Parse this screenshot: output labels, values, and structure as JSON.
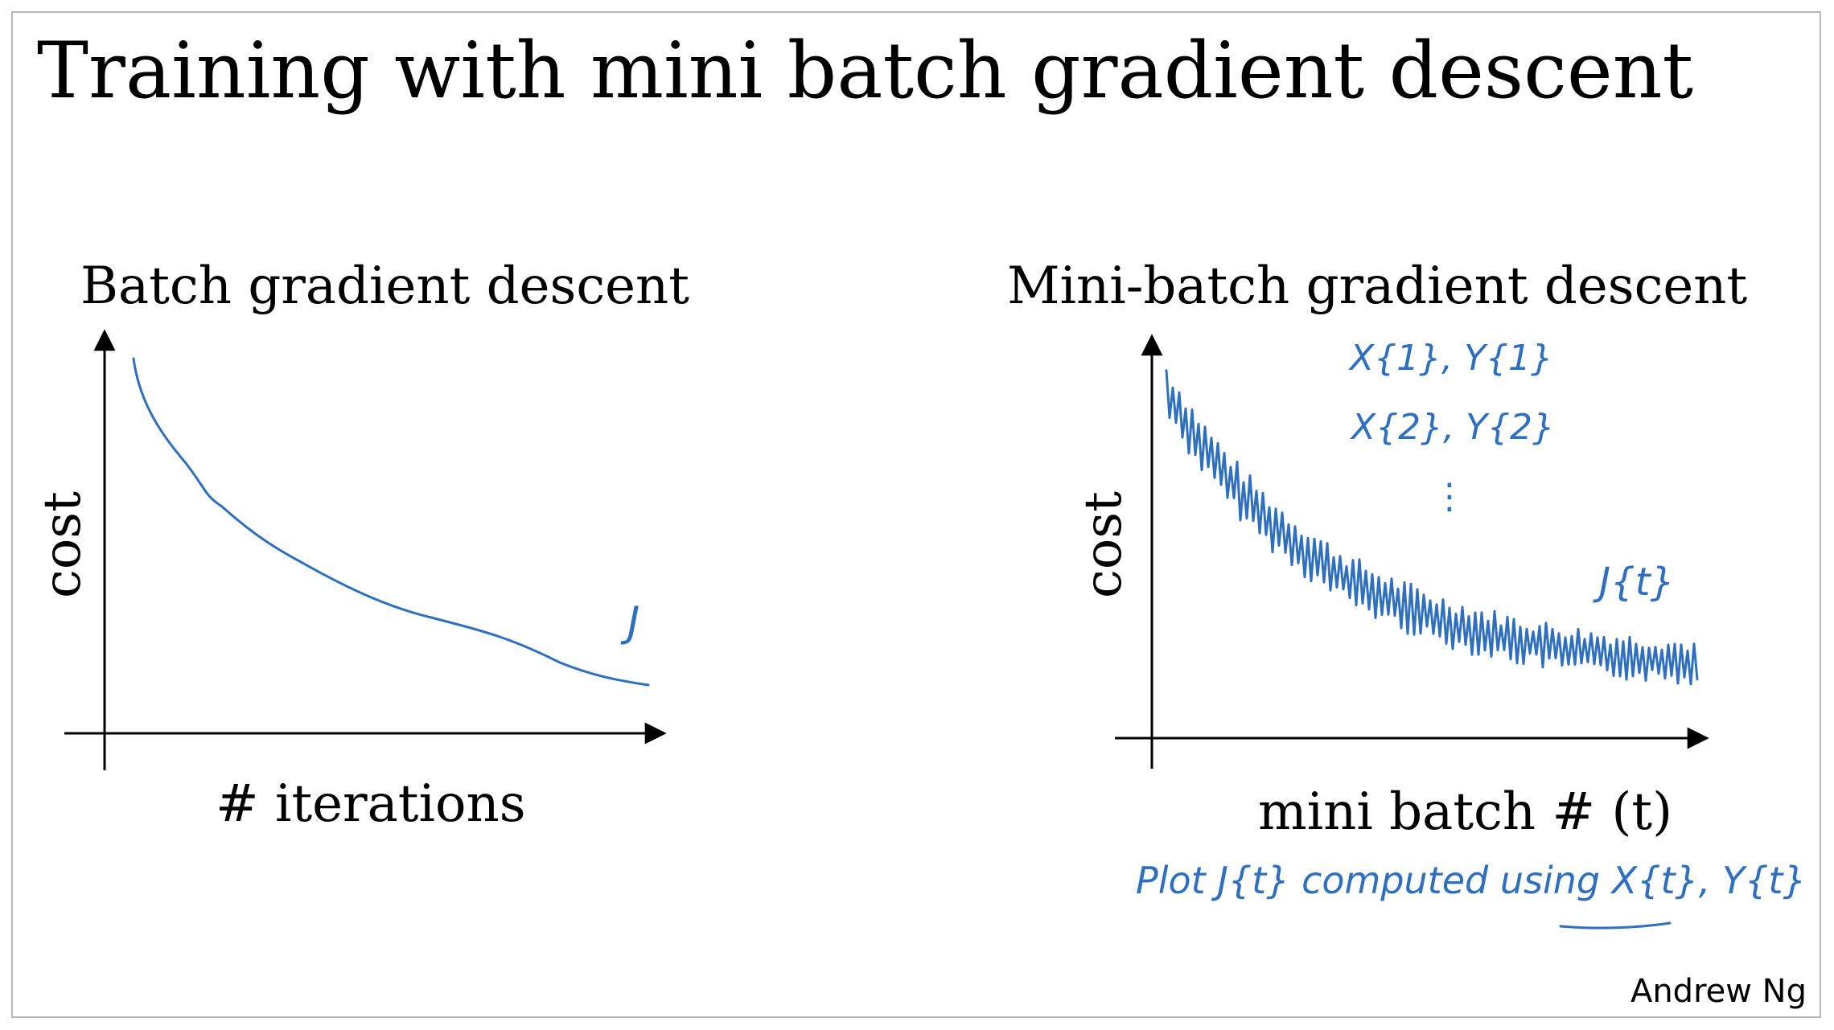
{
  "slide": {
    "title": "Training with mini batch gradient descent",
    "credit": "Andrew Ng"
  },
  "left_panel": {
    "title": "Batch gradient descent",
    "xlabel": "# iterations",
    "ylabel": "cost",
    "curve_label": "J"
  },
  "right_panel": {
    "title": "Mini-batch gradient descent",
    "xlabel": "mini batch # (t)",
    "ylabel": "cost",
    "curve_label": "J{t}",
    "notes": [
      "X{1}, Y{1}",
      "X{2}, Y{2}",
      "⋮"
    ],
    "caption": "Plot J{t} computed using X{t}, Y{t}"
  },
  "colors": {
    "ink": "#2e6fbf",
    "axis": "#000000",
    "border": "#b8b8b8"
  }
}
